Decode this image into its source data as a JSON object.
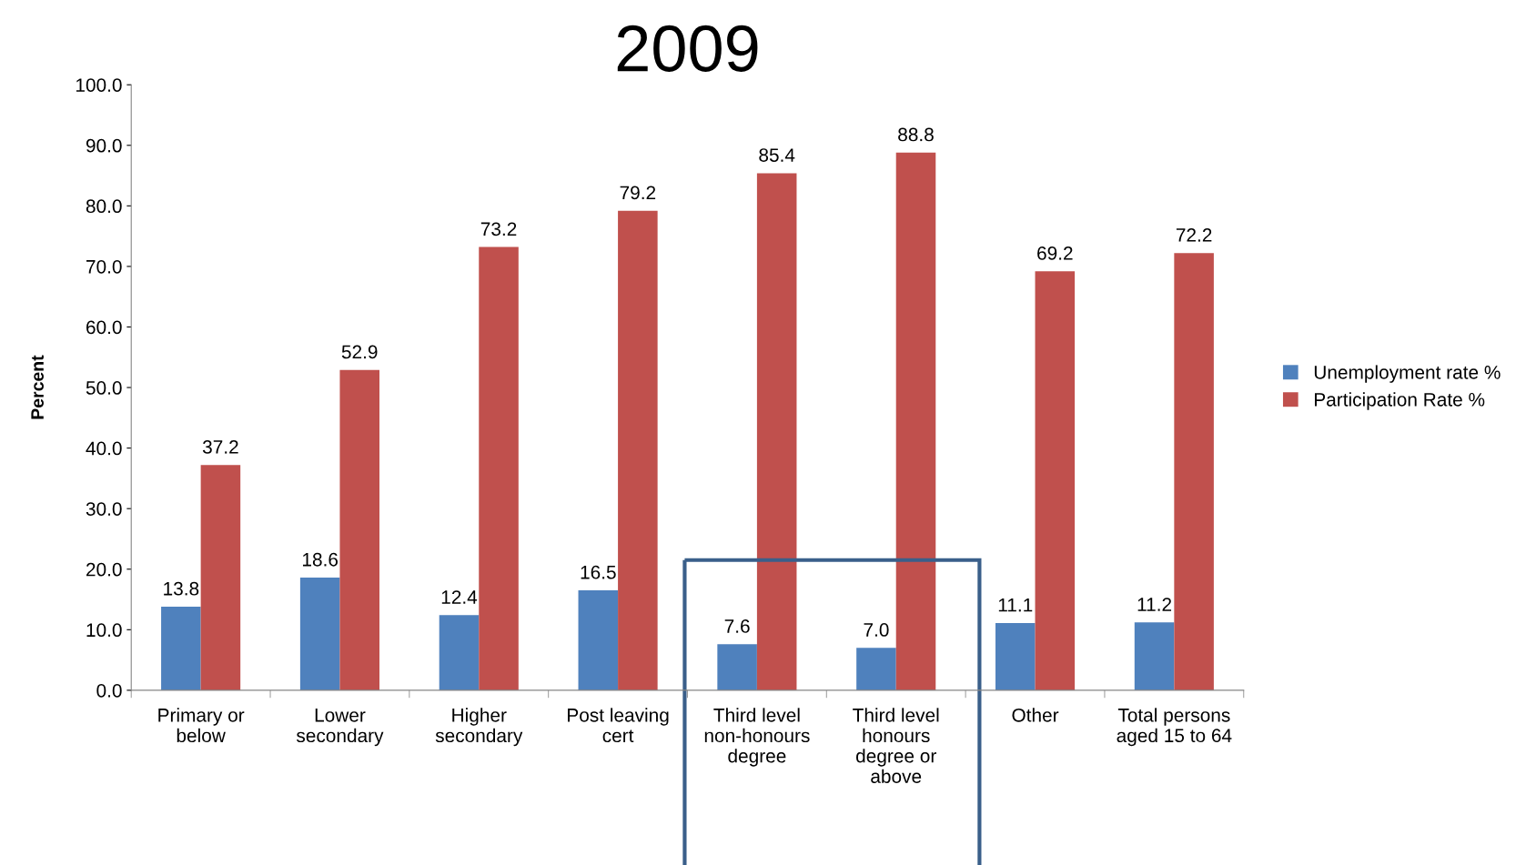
{
  "chart_data": {
    "type": "bar",
    "title": "2009",
    "ylabel": "Percent",
    "categories": [
      "Primary or\nbelow",
      "Lower\nsecondary",
      "Higher\nsecondary",
      "Post leaving\ncert",
      "Third level\nnon-honours\ndegree",
      "Third level\nhonours\ndegree or\nabove",
      "Other",
      "Total persons\naged 15 to 64"
    ],
    "series": [
      {
        "name": "Unemployment rate %",
        "color": "#4f81bd",
        "values": [
          13.8,
          18.6,
          12.4,
          16.5,
          7.6,
          7.0,
          11.1,
          11.2
        ],
        "value_labels": [
          "13.8",
          "18.6",
          "12.4",
          "16.5",
          "7.6",
          "7.0",
          "11.1",
          "11.2"
        ]
      },
      {
        "name": "Participation Rate %",
        "color": "#c0504d",
        "values": [
          37.2,
          52.9,
          73.2,
          79.2,
          85.4,
          88.8,
          69.2,
          72.2
        ],
        "value_labels": [
          "37.2",
          "52.9",
          "73.2",
          "79.2",
          "85.4",
          "88.8",
          "69.2",
          "72.2"
        ]
      }
    ],
    "ylim": [
      0,
      100
    ],
    "yticks": [
      {
        "value": 0,
        "label": "0.0"
      },
      {
        "value": 10,
        "label": "10.0"
      },
      {
        "value": 20,
        "label": "20.0"
      },
      {
        "value": 30,
        "label": "30.0"
      },
      {
        "value": 40,
        "label": "40.0"
      },
      {
        "value": 50,
        "label": "50.0"
      },
      {
        "value": 60,
        "label": "60.0"
      },
      {
        "value": 70,
        "label": "70.0"
      },
      {
        "value": 80,
        "label": "80.0"
      },
      {
        "value": 90,
        "label": "90.0"
      },
      {
        "value": 100,
        "label": "100.0"
      }
    ],
    "legend": "right",
    "grid": false
  }
}
